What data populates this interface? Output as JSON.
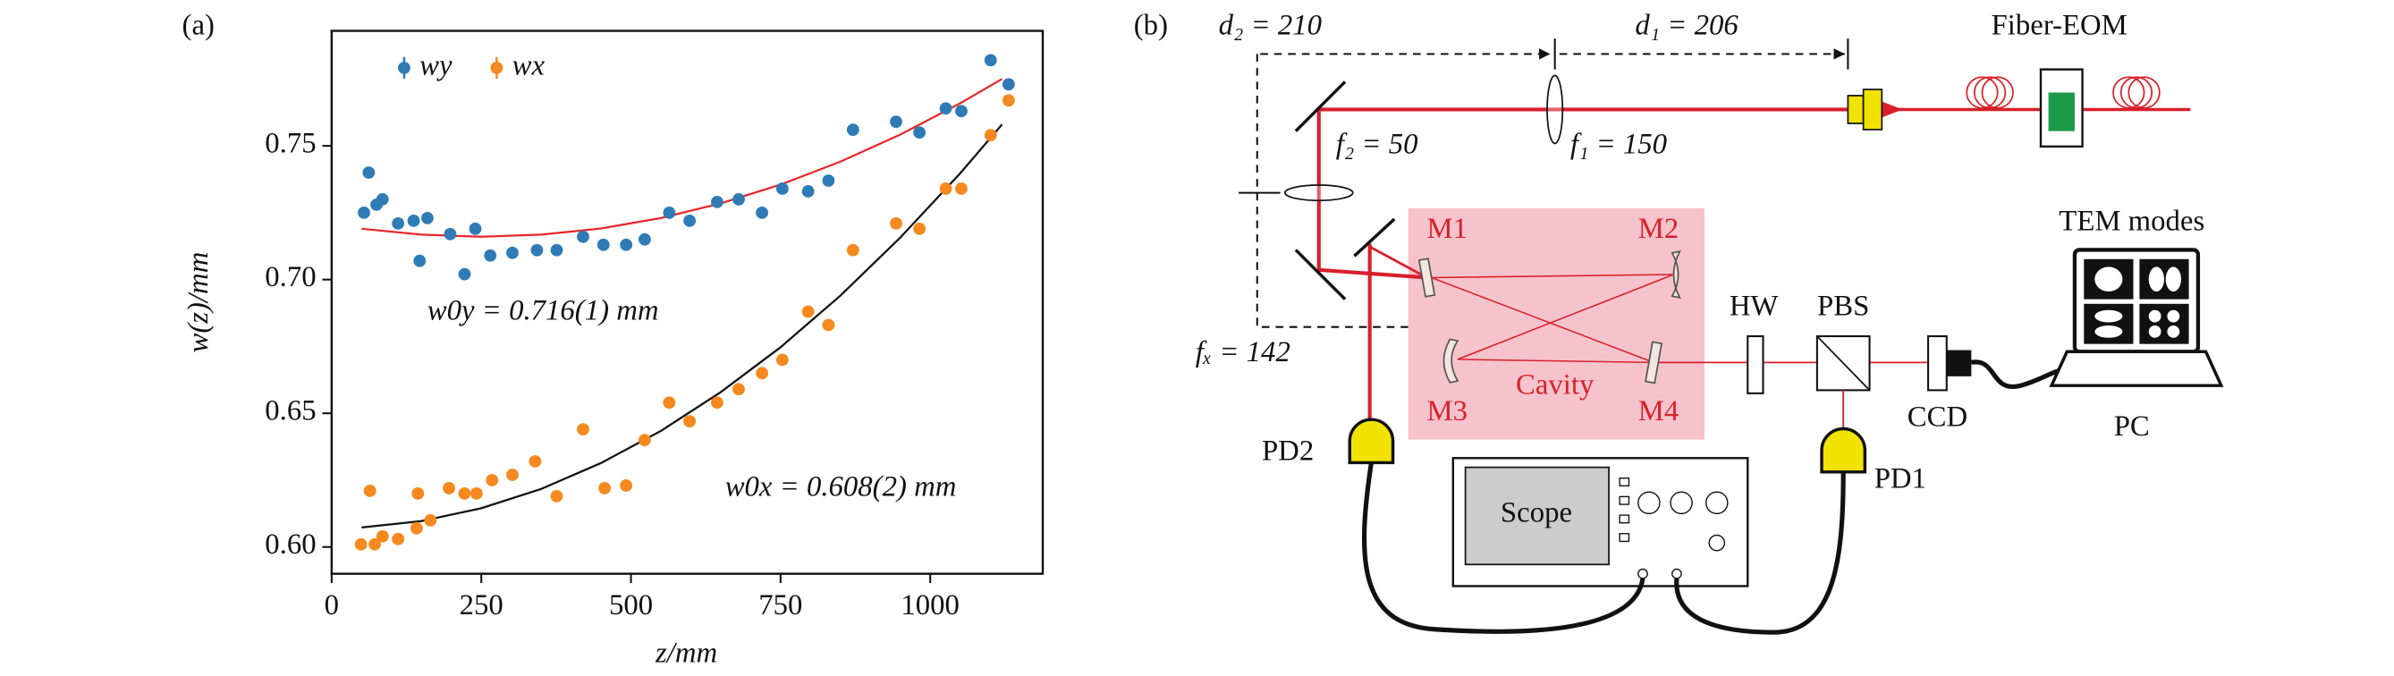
{
  "chart_data": {
    "type": "scatter",
    "panel": "(a)",
    "xlabel": "z/mm",
    "ylabel": "w(z)/mm",
    "xlim": [
      0,
      1188
    ],
    "ylim": [
      0.59,
      0.793
    ],
    "xticks": [
      0,
      250,
      500,
      750,
      1000
    ],
    "yticks": [
      {
        "value": 0.6,
        "label": "0.60"
      },
      0.65,
      {
        "value": 0.7,
        "label": "0.70"
      },
      0.75
    ],
    "legend": "upper left",
    "series": [
      {
        "name": "wy",
        "color": "#2f7bb6",
        "x": [
          54,
          62,
          75,
          85,
          111,
          137,
          147,
          160,
          198,
          222,
          240,
          265,
          302,
          343,
          376,
          420,
          454,
          492,
          523,
          564,
          598,
          644,
          680,
          719,
          753,
          796,
          830,
          871,
          943,
          982,
          1026,
          1052,
          1101,
          1131
        ],
        "values": [
          0.725,
          0.74,
          0.728,
          0.73,
          0.721,
          0.722,
          0.707,
          0.723,
          0.717,
          0.702,
          0.719,
          0.709,
          0.71,
          0.711,
          0.711,
          0.716,
          0.713,
          0.713,
          0.715,
          0.725,
          0.722,
          0.729,
          0.73,
          0.725,
          0.734,
          0.733,
          0.737,
          0.756,
          0.759,
          0.755,
          0.764,
          0.763,
          0.782,
          0.773
        ]
      },
      {
        "name": "wx",
        "color": "#f5891f",
        "x": [
          49,
          64,
          72,
          85,
          111,
          142,
          144,
          165,
          196,
          222,
          242,
          268,
          302,
          340,
          376,
          420,
          456,
          492,
          523,
          564,
          598,
          644,
          680,
          719,
          753,
          796,
          830,
          871,
          943,
          982,
          1026,
          1052,
          1101,
          1131
        ],
        "values": [
          0.601,
          0.621,
          0.601,
          0.604,
          0.603,
          0.607,
          0.62,
          0.61,
          0.622,
          0.62,
          0.62,
          0.625,
          0.627,
          0.632,
          0.619,
          0.644,
          0.622,
          0.623,
          0.64,
          0.654,
          0.647,
          0.654,
          0.659,
          0.665,
          0.67,
          0.688,
          0.683,
          0.711,
          0.721,
          0.719,
          0.734,
          0.734,
          0.754,
          0.767
        ]
      }
    ],
    "fits": [
      {
        "color": "#e8262a",
        "x": [
          50,
          150,
          250,
          350,
          450,
          550,
          650,
          750,
          850,
          950,
          1050,
          1120
        ],
        "values": [
          0.719,
          0.7168,
          0.716,
          0.7168,
          0.7191,
          0.723,
          0.7285,
          0.7355,
          0.7441,
          0.7542,
          0.7659,
          0.775
        ]
      },
      {
        "color": "#111111",
        "x": [
          50,
          150,
          250,
          350,
          450,
          550,
          650,
          750,
          850,
          950,
          1050,
          1120
        ],
        "values": [
          0.6073,
          0.6097,
          0.6145,
          0.6217,
          0.6314,
          0.6434,
          0.6579,
          0.6747,
          0.694,
          0.7157,
          0.7397,
          0.758
        ]
      }
    ],
    "annotations": [
      "w0y = 0.716(1) mm",
      "w0x = 0.608(2) mm"
    ]
  },
  "diagram": {
    "labels": {
      "panel": "(b)",
      "d2": "d₂ = 210",
      "d1": "d₁ = 206",
      "eom": "Fiber-EOM",
      "f2": "f₂ = 50",
      "f1": "f₁ = 150",
      "m1": "M1",
      "m2": "M2",
      "m3": "M3",
      "m4": "M4",
      "cavity": "Cavity",
      "fx": "fₓ = 142",
      "hw": "HW",
      "pbs": "PBS",
      "tem": "TEM modes",
      "ccd": "CCD",
      "pc": "PC",
      "pd2": "PD2",
      "pd1": "PD1",
      "scope": "Scope"
    }
  }
}
